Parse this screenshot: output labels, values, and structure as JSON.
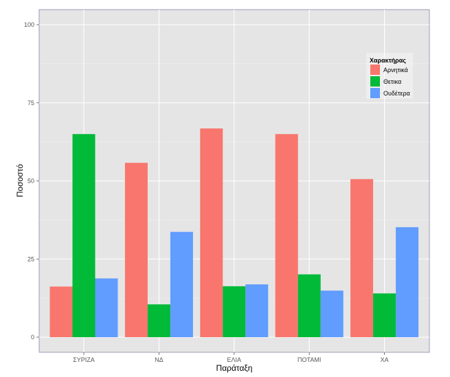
{
  "chart_data": {
    "type": "bar",
    "categories": [
      "ΣΥΡΙΖΑ",
      "ΝΔ",
      "ΕΛΙΑ",
      "ΠΟΤΑΜΙ",
      "ΧΑ"
    ],
    "series": [
      {
        "name": "Αρνητικά",
        "values": [
          16.2,
          55.8,
          66.8,
          65.0,
          50.6
        ],
        "color": "#F8766D"
      },
      {
        "name": "Θετικα",
        "values": [
          65.0,
          10.5,
          16.3,
          20.1,
          14.0
        ],
        "color": "#00BA38"
      },
      {
        "name": "Ουδέτερα",
        "values": [
          18.8,
          33.7,
          16.9,
          14.9,
          35.2
        ],
        "color": "#619CFF"
      }
    ],
    "title": "",
    "xlabel": "Παράταξη",
    "ylabel": "Ποσοστό",
    "ylim": [
      0,
      100
    ],
    "yticks": [
      0,
      25,
      50,
      75,
      100
    ],
    "grid": true,
    "legend": {
      "title": "Χαρακτήρας",
      "position": "top-right inside"
    },
    "panel_background": "#E5E5E5",
    "grid_color": "#FFFFFF"
  }
}
